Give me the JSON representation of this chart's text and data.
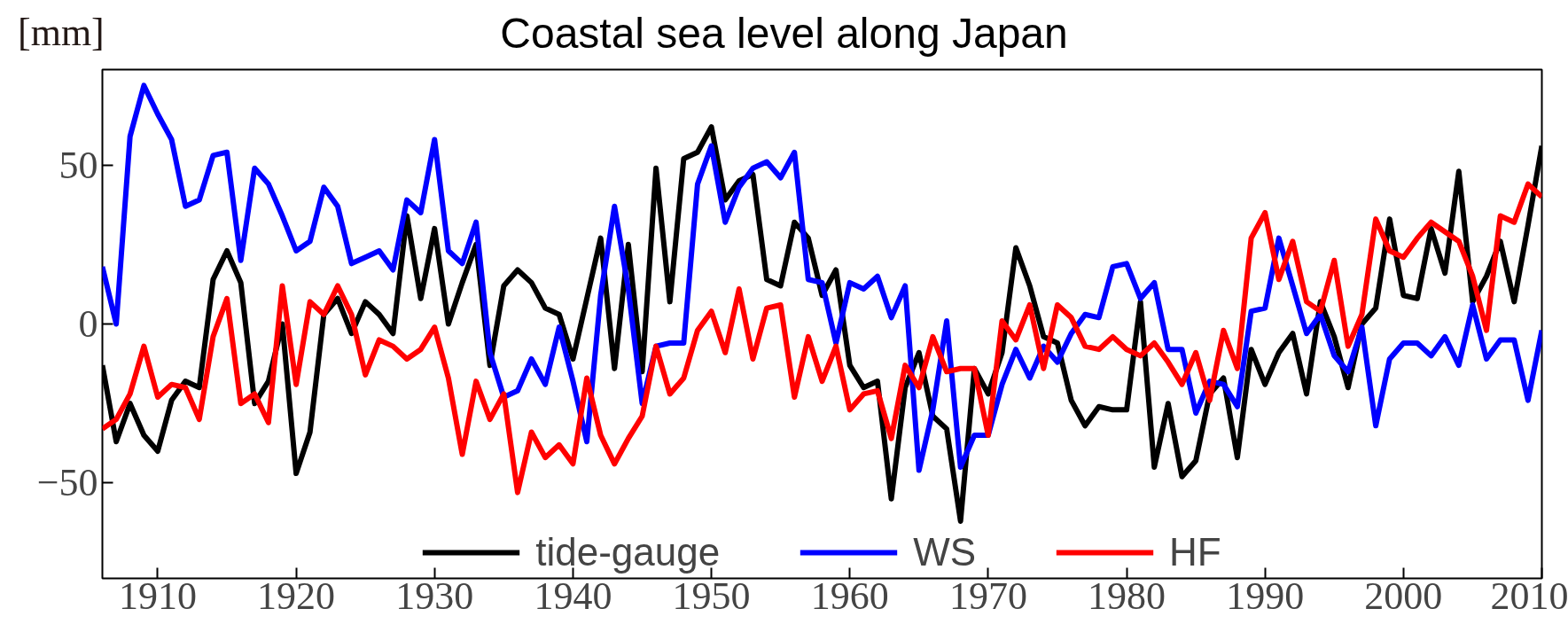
{
  "chart_data": {
    "type": "line",
    "title": "Coastal sea level along Japan",
    "ylabel": "[mm]",
    "x": [
      1906,
      1907,
      1908,
      1909,
      1910,
      1911,
      1912,
      1913,
      1914,
      1915,
      1916,
      1917,
      1918,
      1919,
      1920,
      1921,
      1922,
      1923,
      1924,
      1925,
      1926,
      1927,
      1928,
      1929,
      1930,
      1931,
      1932,
      1933,
      1934,
      1935,
      1936,
      1937,
      1938,
      1939,
      1940,
      1941,
      1942,
      1943,
      1944,
      1945,
      1946,
      1947,
      1948,
      1949,
      1950,
      1951,
      1952,
      1953,
      1954,
      1955,
      1956,
      1957,
      1958,
      1959,
      1960,
      1961,
      1962,
      1963,
      1964,
      1965,
      1966,
      1967,
      1968,
      1969,
      1970,
      1971,
      1972,
      1973,
      1974,
      1975,
      1976,
      1977,
      1978,
      1979,
      1980,
      1981,
      1982,
      1983,
      1984,
      1985,
      1986,
      1987,
      1988,
      1989,
      1990,
      1991,
      1992,
      1993,
      1994,
      1995,
      1996,
      1997,
      1998,
      1999,
      2000,
      2001,
      2002,
      2003,
      2004,
      2005,
      2006,
      2007,
      2008,
      2009,
      2010
    ],
    "series": [
      {
        "name": "tide-gauge",
        "color": "#000000",
        "values": [
          -13,
          -37,
          -25,
          -35,
          -40,
          -24,
          -18,
          -20,
          14,
          23,
          13,
          -25,
          -18,
          0,
          -47,
          -34,
          3,
          8,
          -3,
          7,
          3,
          -3,
          34,
          8,
          30,
          0,
          13,
          25,
          -13,
          12,
          17,
          13,
          5,
          3,
          -11,
          8,
          27,
          -14,
          25,
          -15,
          49,
          7,
          52,
          54,
          62,
          39,
          45,
          47,
          14,
          12,
          32,
          27,
          9,
          17,
          -13,
          -20,
          -18,
          -55,
          -20,
          -9,
          -29,
          -33,
          -62,
          -14,
          -22,
          -9,
          24,
          12,
          -4,
          -6,
          -24,
          -32,
          -26,
          -27,
          -27,
          7,
          -45,
          -25,
          -48,
          -43,
          -22,
          -17,
          -42,
          -8,
          -19,
          -9,
          -3,
          -22,
          7,
          -4,
          -20,
          0,
          5,
          33,
          9,
          8,
          30,
          16,
          48,
          7,
          15,
          26,
          7,
          31,
          56
        ]
      },
      {
        "name": "WS",
        "color": "#0000ff",
        "values": [
          18,
          0,
          59,
          75,
          66,
          58,
          37,
          39,
          53,
          54,
          20,
          49,
          44,
          34,
          23,
          26,
          43,
          37,
          19,
          21,
          23,
          17,
          39,
          35,
          58,
          23,
          19,
          32,
          -9,
          -23,
          -21,
          -11,
          -19,
          -1,
          -18,
          -37,
          9,
          37,
          11,
          -25,
          -7,
          -6,
          -6,
          44,
          56,
          32,
          43,
          49,
          51,
          46,
          54,
          14,
          13,
          -6,
          13,
          11,
          15,
          2,
          12,
          -46,
          -27,
          1,
          -45,
          -35,
          -35,
          -19,
          -8,
          -17,
          -7,
          -12,
          -3,
          3,
          2,
          18,
          19,
          8,
          13,
          -8,
          -8,
          -28,
          -18,
          -19,
          -26,
          4,
          5,
          27,
          12,
          -3,
          3,
          -10,
          -15,
          -1,
          -32,
          -11,
          -6,
          -6,
          -10,
          -4,
          -13,
          6,
          -11,
          -5,
          -5,
          -24,
          -2
        ]
      },
      {
        "name": "HF",
        "color": "#ff0000",
        "values": [
          -33,
          -30,
          -22,
          -7,
          -23,
          -19,
          -20,
          -30,
          -4,
          8,
          -25,
          -22,
          -31,
          12,
          -19,
          7,
          3,
          12,
          3,
          -16,
          -5,
          -7,
          -11,
          -8,
          -1,
          -17,
          -41,
          -18,
          -30,
          -22,
          -53,
          -34,
          -42,
          -38,
          -44,
          -17,
          -35,
          -44,
          -36,
          -29,
          -7,
          -22,
          -17,
          -2,
          4,
          -9,
          11,
          -11,
          5,
          6,
          -23,
          -4,
          -18,
          -7,
          -27,
          -22,
          -21,
          -36,
          -13,
          -20,
          -4,
          -15,
          -14,
          -14,
          -35,
          1,
          -5,
          6,
          -14,
          6,
          2,
          -7,
          -8,
          -4,
          -8,
          -10,
          -6,
          -12,
          -19,
          -9,
          -24,
          -2,
          -14,
          27,
          35,
          14,
          26,
          7,
          4,
          20,
          -7,
          3,
          33,
          23,
          21,
          27,
          32,
          29,
          26,
          15,
          -2,
          34,
          32,
          44,
          40
        ]
      }
    ],
    "xlim": [
      1906,
      2010
    ],
    "ylim": [
      -80,
      80
    ],
    "xticks": [
      1910,
      1920,
      1930,
      1940,
      1950,
      1960,
      1970,
      1980,
      1990,
      2000,
      2010
    ],
    "yticks": [
      {
        "value": -50,
        "label": "−50"
      },
      0,
      50
    ],
    "legend": "bottom",
    "grid": false,
    "line_style": "solid"
  }
}
